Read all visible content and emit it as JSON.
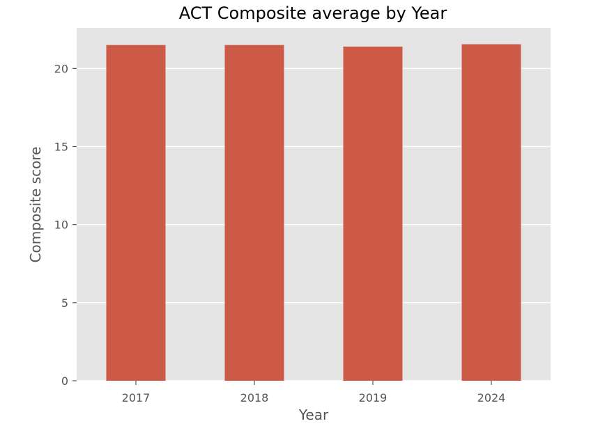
{
  "chart_data": {
    "type": "bar",
    "title": "ACT Composite average by Year",
    "xlabel": "Year",
    "ylabel": "Composite score",
    "categories": [
      "2017",
      "2018",
      "2019",
      "2024"
    ],
    "values": [
      21.5,
      21.5,
      21.4,
      21.55
    ],
    "ylim": [
      0,
      22.6
    ],
    "yticks": [
      0,
      5,
      10,
      15,
      20
    ],
    "grid": true,
    "colors": {
      "bar": "#cc5a47",
      "plot_background": "#e5e5e5",
      "grid": "#ffffff"
    }
  }
}
